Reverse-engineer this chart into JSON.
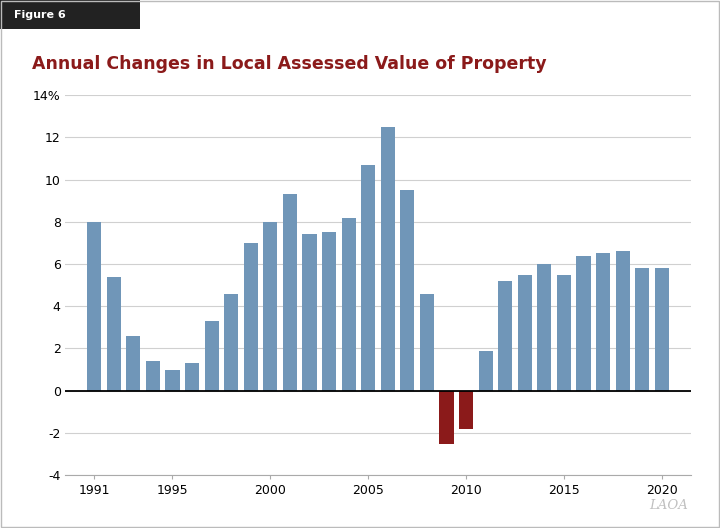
{
  "years": [
    1991,
    1992,
    1993,
    1994,
    1995,
    1996,
    1997,
    1998,
    1999,
    2000,
    2001,
    2002,
    2003,
    2004,
    2005,
    2006,
    2007,
    2008,
    2009,
    2010,
    2011,
    2012,
    2013,
    2014,
    2015,
    2016,
    2017,
    2018,
    2019,
    2020
  ],
  "values": [
    8.0,
    5.4,
    2.6,
    1.4,
    1.0,
    1.3,
    3.3,
    4.6,
    7.0,
    8.0,
    9.3,
    7.4,
    7.5,
    8.2,
    10.7,
    12.5,
    9.5,
    4.6,
    -2.5,
    -1.8,
    1.9,
    5.2,
    5.5,
    6.0,
    5.5,
    6.4,
    6.5,
    6.6,
    5.8,
    5.8
  ],
  "bar_colors_positive": "#7096b8",
  "bar_colors_negative": "#8b1a1a",
  "title": "Annual Changes in Local Assessed Value of Property",
  "figure_label": "Figure 6",
  "ylim": [
    -4,
    14
  ],
  "yticks": [
    -4,
    -2,
    0,
    2,
    4,
    6,
    8,
    10,
    12,
    14
  ],
  "ytick_labels": [
    "-4",
    "-2",
    "0",
    "2",
    "4",
    "6",
    "8",
    "10",
    "12",
    "14%"
  ],
  "xticks": [
    1991,
    1995,
    2000,
    2005,
    2010,
    2015,
    2020
  ],
  "background_color": "#ffffff",
  "grid_color": "#d0d0d0",
  "title_color": "#8b1a1a",
  "watermark": "LAOA",
  "header_bg": "#222222",
  "header_text_color": "#ffffff"
}
